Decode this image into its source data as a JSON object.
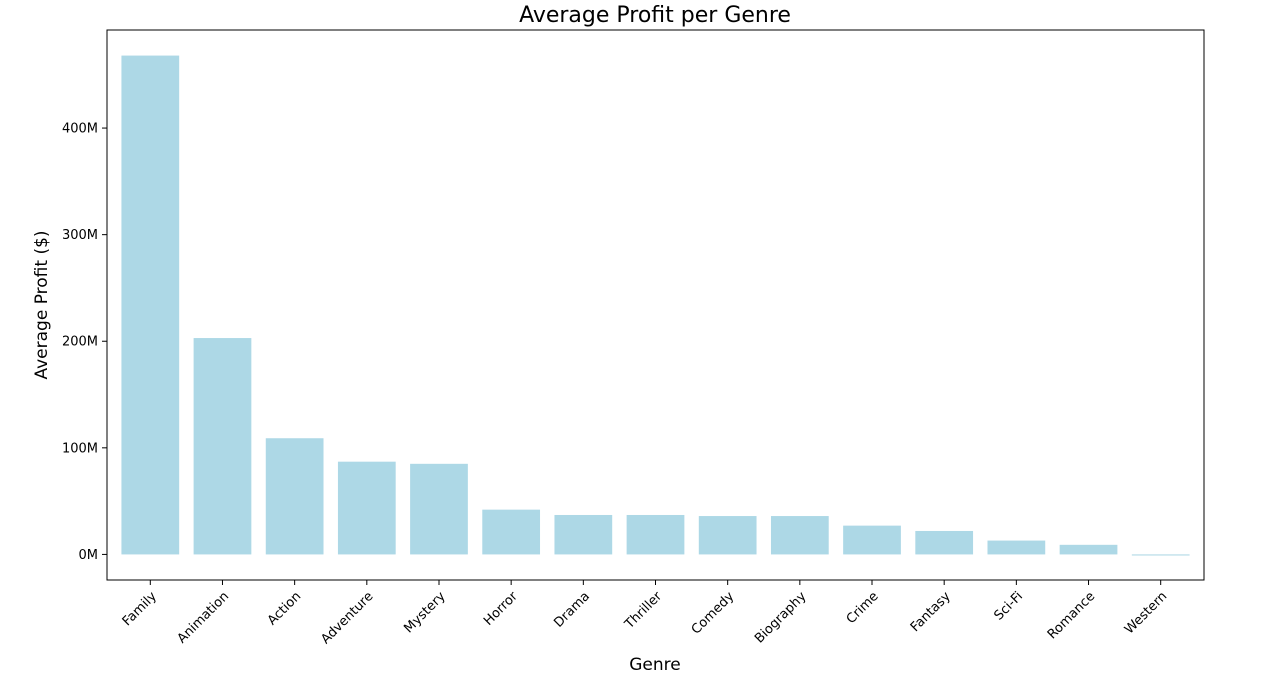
{
  "chart_data": {
    "type": "bar",
    "title": "Average Profit per Genre",
    "xlabel": "Genre",
    "ylabel": "Average Profit ($)",
    "categories": [
      "Family",
      "Animation",
      "Action",
      "Adventure",
      "Mystery",
      "Horror",
      "Drama",
      "Thriller",
      "Comedy",
      "Biography",
      "Crime",
      "Fantasy",
      "Sci-Fi",
      "Romance",
      "Western"
    ],
    "values": [
      468000000,
      203000000,
      109000000,
      87000000,
      85000000,
      42000000,
      37000000,
      37000000,
      36000000,
      36000000,
      27000000,
      22000000,
      13000000,
      9000000,
      -1000000
    ],
    "ylim": [
      -24000000,
      492000000
    ],
    "yticks": [
      0,
      100000000,
      200000000,
      300000000,
      400000000
    ],
    "ytick_labels": [
      "0M",
      "100M",
      "200M",
      "300M",
      "400M"
    ],
    "bar_color": "#add8e6",
    "grid": false,
    "legend": "none"
  }
}
